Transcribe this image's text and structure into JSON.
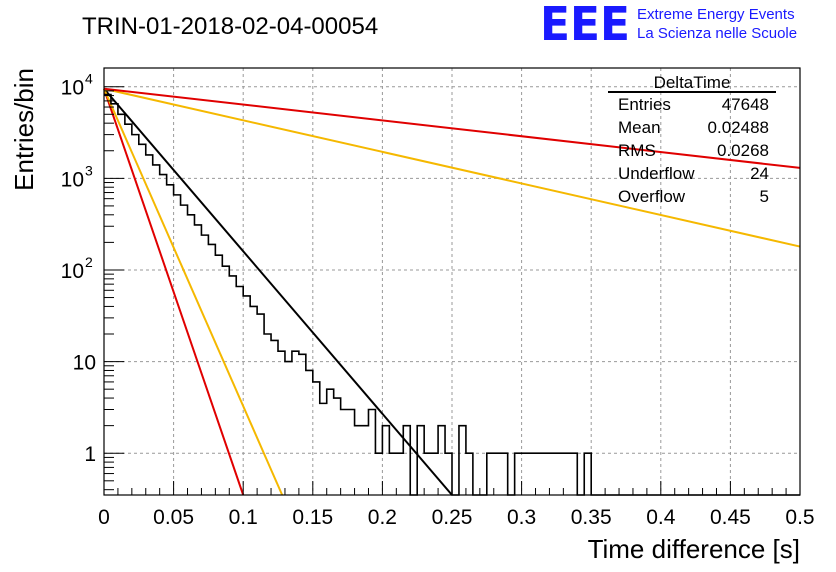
{
  "header": {
    "run_title": "TRIN-01-2018-02-04-00054",
    "logo_text": "EEE",
    "logo_line1": "Extreme Energy Events",
    "logo_line2": "La Scienza nelle Scuole",
    "logo_color": "#1a1aff"
  },
  "stats": {
    "title": "DeltaTime",
    "rows": [
      {
        "label": "Entries",
        "value": "47648"
      },
      {
        "label": "Mean",
        "value": "0.02488"
      },
      {
        "label": "RMS",
        "value": "0.0268"
      },
      {
        "label": "Underflow",
        "value": "24"
      },
      {
        "label": "Overflow",
        "value": "5"
      }
    ]
  },
  "chart_data": {
    "type": "line",
    "xlabel": "Time difference [s]",
    "ylabel": "Entries/bin",
    "xlim": [
      0,
      0.5
    ],
    "ylim": [
      0.35,
      16000
    ],
    "yscale": "log",
    "grid": true,
    "xticks": [
      "0",
      "0.05",
      "0.1",
      "0.15",
      "0.2",
      "0.25",
      "0.3",
      "0.35",
      "0.4",
      "0.45",
      "0.5"
    ],
    "yticks": [
      {
        "value": 1,
        "label": "1"
      },
      {
        "value": 10,
        "label": "10"
      },
      {
        "value": 100,
        "label": "10",
        "exp": "2"
      },
      {
        "value": 1000,
        "label": "10",
        "exp": "3"
      },
      {
        "value": 10000,
        "label": "10",
        "exp": "4"
      }
    ],
    "bin_width": 0.005,
    "histogram_color": "#000000",
    "histogram": [
      8200,
      6500,
      5000,
      3900,
      3000,
      2350,
      1800,
      1400,
      1100,
      850,
      660,
      510,
      400,
      310,
      240,
      190,
      145,
      110,
      86,
      66,
      52,
      40,
      33,
      20,
      17,
      13,
      10,
      13,
      12,
      8,
      6,
      3.5,
      5,
      4,
      3,
      3,
      2,
      2,
      3,
      1,
      2,
      1,
      1,
      2,
      0.3,
      2,
      1,
      1,
      2,
      1,
      0.3,
      2,
      1,
      0.3,
      0.3,
      1,
      1,
      1,
      0.3,
      1,
      1,
      1,
      1,
      1,
      1,
      1,
      1,
      1,
      0.3,
      1,
      0.3,
      0.3,
      0.3,
      0.3,
      0.3,
      0.3,
      0.3,
      0.3,
      0.3,
      0.3,
      0.3,
      0.3,
      0.3,
      0.3,
      0.3,
      0.3,
      0.3,
      0.3,
      0.3,
      0.3,
      0.3,
      0.3,
      0.3,
      0.3,
      0.3,
      0.3,
      0.3,
      0.3,
      0.3,
      0.3
    ],
    "fits": [
      {
        "color": "#000000",
        "x": [
          0,
          0.25
        ],
        "y": [
          9500,
          0.35
        ]
      },
      {
        "color": "#e00000",
        "x": [
          0,
          0.1
        ],
        "y": [
          9500,
          0.35
        ]
      },
      {
        "color": "#f5b800",
        "x": [
          0,
          0.128
        ],
        "y": [
          9500,
          0.35
        ]
      },
      {
        "color": "#f5b800",
        "x": [
          0,
          0.5
        ],
        "y": [
          9500,
          180
        ]
      },
      {
        "color": "#e00000",
        "x": [
          0,
          0.5
        ],
        "y": [
          9500,
          1300
        ]
      }
    ]
  }
}
